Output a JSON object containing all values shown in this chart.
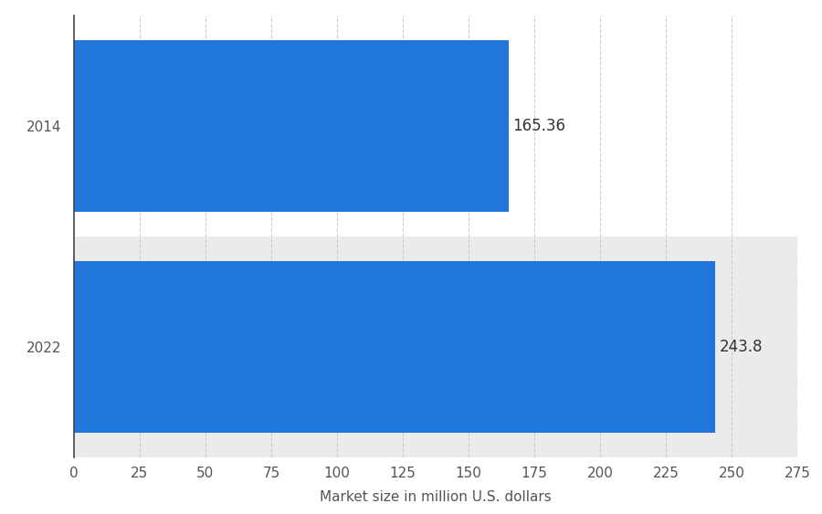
{
  "categories": [
    "2014",
    "2022"
  ],
  "values": [
    165.36,
    243.8
  ],
  "bar_color": "#2176d9",
  "bar_labels": [
    "165.36",
    "243.8"
  ],
  "xlabel": "Market size in million U.S. dollars",
  "xlim": [
    0,
    275
  ],
  "xticks": [
    0,
    25,
    50,
    75,
    100,
    125,
    150,
    175,
    200,
    225,
    250,
    275
  ],
  "background_color": "#ffffff",
  "row_alt_color": "#ebebeb",
  "grid_color": "#cccccc",
  "label_fontsize": 11,
  "tick_fontsize": 11,
  "xlabel_fontsize": 11,
  "value_label_fontsize": 12,
  "bar_height": 0.78
}
